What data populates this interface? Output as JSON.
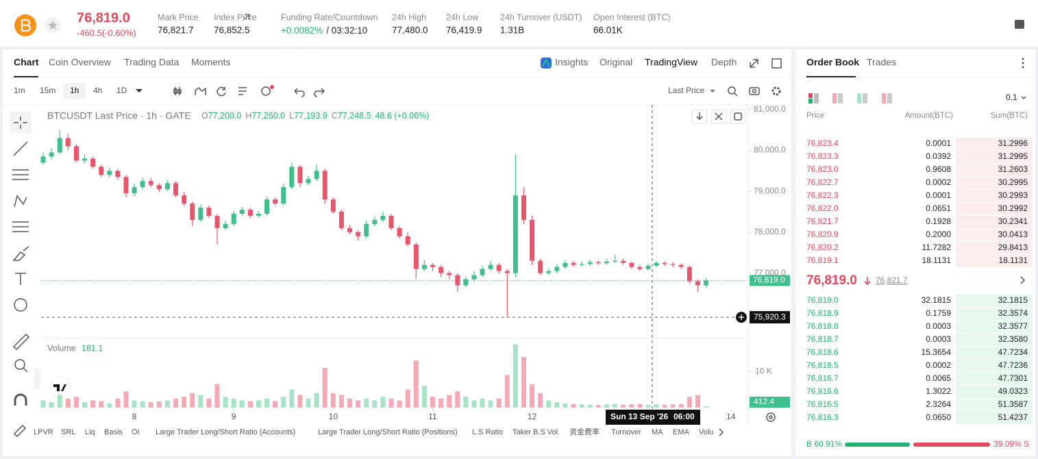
{
  "header": {
    "price": "76,819.0",
    "change": "-460.5(-0.60%)",
    "stats": [
      {
        "label": "Mark Price",
        "value": "76,821.7"
      },
      {
        "label": "Index Price",
        "value": "76,852.5"
      },
      {
        "label": "Funding Rate/Countdown",
        "value": "+0.0082%",
        "extra": "/ 03:32:10"
      },
      {
        "label": "24h High",
        "value": "77,480.0"
      },
      {
        "label": "24h Low",
        "value": "76,419.9"
      },
      {
        "label": "24h Turnover (USDT)",
        "value": "1.31B"
      },
      {
        "label": "Open Interest (BTC)",
        "value": "66.01K"
      }
    ]
  },
  "chart_tabs": [
    "Chart",
    "Coin Overview",
    "Trading Data",
    "Moments"
  ],
  "view_tabs": [
    "Insights",
    "Original",
    "TradingView",
    "Depth"
  ],
  "intervals": [
    "1m",
    "15m",
    "1h",
    "4h",
    "1D"
  ],
  "price_type": "Last Price",
  "legend": {
    "title": "BTCUSDT Last Price · 1h · GATE",
    "fields": [
      {
        "key": "O",
        "value": "77,200.0"
      },
      {
        "key": "H",
        "value": "77,260.0"
      },
      {
        "key": "L",
        "value": "77,193.9"
      },
      {
        "key": "C",
        "value": "77,248.5"
      }
    ],
    "change": "48.6 (+0.06%)"
  },
  "chart_data": {
    "type": "candlestick",
    "open": [
      79700,
      79850,
      79950,
      80300,
      80100,
      79750,
      79800,
      79600,
      79400,
      79500,
      79350,
      78950,
      79100,
      79250,
      79150,
      79050,
      79200,
      78900,
      78700,
      78300,
      78600,
      78400,
      78100,
      78200,
      78450,
      78550,
      78400,
      78450,
      78800,
      78700,
      79100,
      79600,
      79200,
      79300,
      79500,
      78800,
      78500,
      78100,
      78000,
      77900,
      78200,
      78300,
      78400,
      78100,
      77900,
      77700,
      77100,
      77200,
      77150,
      77000,
      76950,
      76700,
      76850,
      76950,
      77100,
      77200,
      77050,
      77000,
      78900,
      78300,
      77300,
      77000,
      77050,
      77150,
      77250,
      77200,
      77220,
      77270,
      77240,
      77280,
      77300,
      77250,
      77150,
      77100,
      77180,
      77250,
      77220,
      77200,
      77150,
      76800,
      76700
    ],
    "high": [
      79950,
      80050,
      80500,
      80400,
      80150,
      79900,
      79850,
      79650,
      79580,
      79550,
      79400,
      79180,
      79330,
      79320,
      79200,
      79280,
      79250,
      78980,
      78750,
      78680,
      78650,
      78450,
      78280,
      78520,
      78620,
      78600,
      78520,
      78880,
      78850,
      79180,
      79700,
      79650,
      79380,
      79650,
      79550,
      78850,
      78550,
      78180,
      78050,
      78280,
      78380,
      78500,
      78450,
      78150,
      78000,
      77750,
      77320,
      77250,
      77200,
      77050,
      77000,
      76920,
      77050,
      77180,
      77300,
      77250,
      77100,
      79900,
      79100,
      78400,
      77350,
      77120,
      77220,
      77320,
      77300,
      77290,
      77320,
      77310,
      77340,
      77450,
      77350,
      77280,
      77200,
      77230,
      77300,
      77290,
      77270,
      77230,
      77180,
      76850,
      76880
    ],
    "low": [
      79650,
      79780,
      79900,
      80000,
      79700,
      79680,
      79550,
      79350,
      79330,
      79280,
      78850,
      78880,
      79050,
      79100,
      78980,
      79000,
      78850,
      78650,
      78150,
      78250,
      78350,
      77700,
      78050,
      78150,
      78400,
      78350,
      78350,
      78400,
      78650,
      78650,
      79050,
      79100,
      79150,
      79250,
      78700,
      78450,
      78050,
      77950,
      77800,
      77850,
      78150,
      78250,
      78050,
      77850,
      77650,
      76850,
      77050,
      77050,
      76900,
      76850,
      76550,
      76650,
      76800,
      76900,
      77050,
      76980,
      75920,
      76900,
      78200,
      77200,
      76950,
      76950,
      77000,
      77100,
      77150,
      77160,
      77180,
      77200,
      77200,
      77250,
      77200,
      77100,
      77050,
      77060,
      77150,
      77180,
      77150,
      77100,
      76750,
      76550,
      76650
    ],
    "close": [
      79850,
      79950,
      80300,
      80100,
      79750,
      79800,
      79600,
      79400,
      79500,
      79350,
      78950,
      79100,
      79250,
      79150,
      79050,
      79200,
      78900,
      78700,
      78300,
      78600,
      78400,
      78100,
      78200,
      78450,
      78550,
      78400,
      78450,
      78800,
      78700,
      79100,
      79600,
      79200,
      79300,
      79500,
      78800,
      78500,
      78100,
      78000,
      77900,
      78200,
      78300,
      78400,
      78100,
      77900,
      77700,
      77100,
      77200,
      77150,
      77000,
      76950,
      76700,
      76850,
      76950,
      77100,
      77200,
      77050,
      77000,
      78900,
      78300,
      77300,
      77000,
      77050,
      77150,
      77250,
      77200,
      77220,
      77270,
      77240,
      77280,
      77300,
      77250,
      77150,
      77100,
      77180,
      77250,
      77220,
      77200,
      77150,
      76800,
      76700,
      76819
    ],
    "up_color": "#3fbf8c",
    "down_color": "#e9566b",
    "xlim": [
      -0.25,
      84.5
    ],
    "xticks": [
      {
        "value": 11,
        "label": "8"
      },
      {
        "value": 23,
        "label": "9"
      },
      {
        "value": 35,
        "label": "10"
      },
      {
        "value": 47,
        "label": "11"
      },
      {
        "value": 59,
        "label": "12"
      },
      {
        "value": 83,
        "label": "14"
      }
    ],
    "ylim": [
      75470,
      81080
    ],
    "yticks": [
      {
        "value": 77000,
        "label": "77,000.0"
      },
      {
        "value": 78000,
        "label": "78,000.0"
      },
      {
        "value": 79000,
        "label": "79,000.0"
      },
      {
        "value": 80000,
        "label": "80,000.0"
      },
      {
        "value": 81000,
        "label": "81,000.0"
      }
    ],
    "last_price": {
      "value": 76819,
      "label": "76,819.0"
    },
    "crosshair": {
      "value": 75920.3,
      "label": "75,920.3"
    },
    "crosshair_date": "Sun 13 Sep '26",
    "crosshair_time": "06:00",
    "volume": {
      "title": "Volume",
      "value": "181.1",
      "values": [
        2000,
        1500,
        3500,
        2500,
        3000,
        1500,
        2000,
        1800,
        1200,
        2500,
        4500,
        2000,
        1800,
        1500,
        1700,
        2000,
        2500,
        3000,
        4000,
        3500,
        2500,
        6500,
        3000,
        2500,
        2000,
        1800,
        2000,
        2500,
        1800,
        3000,
        5000,
        3500,
        2500,
        4000,
        11000,
        4000,
        3500,
        2500,
        2000,
        2500,
        2000,
        3000,
        2500,
        2000,
        5000,
        13000,
        6000,
        3000,
        2500,
        3500,
        4500,
        3000,
        2000,
        2500,
        2000,
        2500,
        9000,
        17500,
        14000,
        6500,
        4000,
        2000,
        1500,
        1200,
        1000,
        900,
        800,
        700,
        900,
        1000,
        800,
        900,
        1000,
        800,
        900,
        800,
        900,
        1000,
        3000,
        3500,
        412.4
      ],
      "up_color": "#a6e3c7",
      "down_color": "#f4a9b5",
      "ylim": [
        0,
        18000
      ],
      "yticks": [
        {
          "value": 10000,
          "label": "10 K"
        }
      ],
      "last_label": "412.4"
    }
  },
  "indicators": [
    "LPVR",
    "SRL",
    "Liq",
    "Basis",
    "OI",
    "Large Trader Long/Short Ratio (Accounts)",
    "Large Trader Long/Short Ratio (Positions)",
    "L.S Ratio",
    "Taker B.S Vol.",
    "资金费率",
    "Turnover",
    "MA",
    "EMA",
    "Volu"
  ],
  "order_book": {
    "tabs": [
      "Order Book",
      "Trades"
    ],
    "precision": "0.1",
    "columns": [
      "Price",
      "Amount(BTC)",
      "Sum(BTC)"
    ],
    "asks": [
      [
        "76,823.4",
        "0.0001",
        "31.2996"
      ],
      [
        "76,823.3",
        "0.0392",
        "31.2995"
      ],
      [
        "76,823.0",
        "0.9608",
        "31.2603"
      ],
      [
        "76,822.7",
        "0.0002",
        "30.2995"
      ],
      [
        "76,822.3",
        "0.0001",
        "30.2993"
      ],
      [
        "76,822.0",
        "0.0651",
        "30.2992"
      ],
      [
        "76,821.7",
        "0.1928",
        "30.2341"
      ],
      [
        "76,820.9",
        "0.2000",
        "30.0413"
      ],
      [
        "76,820.2",
        "11.7282",
        "29.8413"
      ],
      [
        "76,819.1",
        "18.1131",
        "18.1131"
      ]
    ],
    "mid": {
      "price": "76,819.0",
      "mark": "76,821.7"
    },
    "bids": [
      [
        "76,819.0",
        "32.1815",
        "32.1815"
      ],
      [
        "76,818.9",
        "0.1759",
        "32.3574"
      ],
      [
        "76,818.8",
        "0.0003",
        "32.3577"
      ],
      [
        "76,818.7",
        "0.0003",
        "32.3580"
      ],
      [
        "76,818.6",
        "15.3654",
        "47.7234"
      ],
      [
        "76,818.5",
        "0.0002",
        "47.7236"
      ],
      [
        "76,816.7",
        "0.0065",
        "47.7301"
      ],
      [
        "76,816.6",
        "1.3022",
        "49.0323"
      ],
      [
        "76,816.5",
        "2.3264",
        "51.3587"
      ],
      [
        "76,816.3",
        "0.0650",
        "51.4237"
      ]
    ],
    "buy_ratio": "B 60.91%",
    "sell_ratio": "39.09% S"
  }
}
